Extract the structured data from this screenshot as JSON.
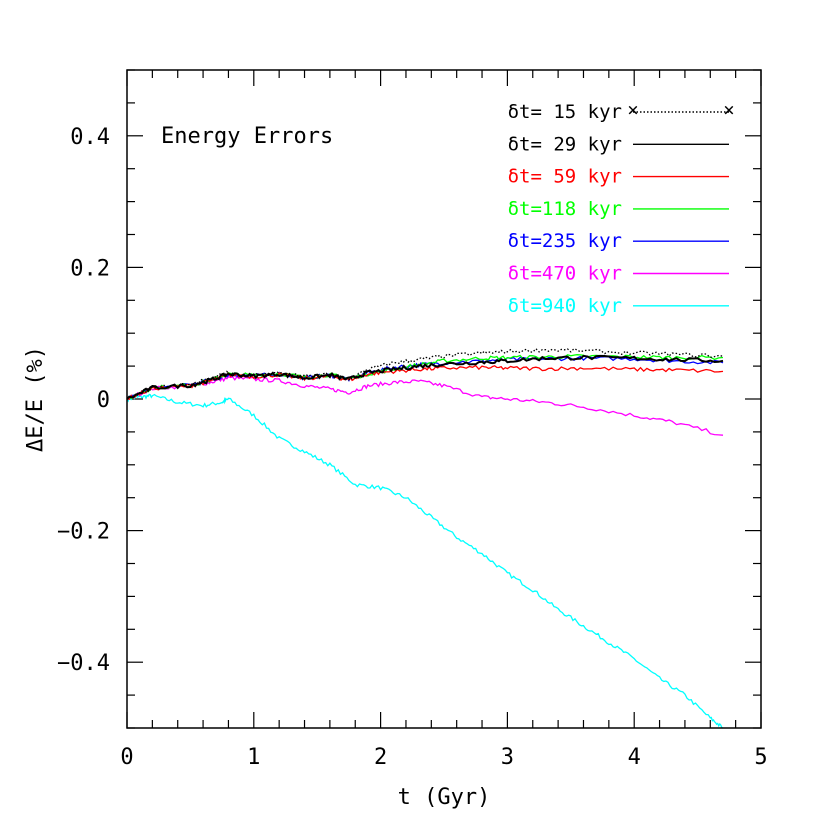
{
  "chart_data": {
    "type": "line",
    "annotation": "Energy Errors",
    "xlabel": "t (Gyr)",
    "ylabel": "ΔE/E (%)",
    "xlim": [
      0,
      5
    ],
    "ylim": [
      -0.5,
      0.5
    ],
    "x_ticks": [
      {
        "value": 0,
        "label": "0"
      },
      {
        "value": 1,
        "label": "1"
      },
      {
        "value": 2,
        "label": "2"
      },
      {
        "value": 3,
        "label": "3"
      },
      {
        "value": 4,
        "label": "4"
      },
      {
        "value": 5,
        "label": "5"
      }
    ],
    "y_ticks": [
      {
        "value": 0.4,
        "label": "0.4"
      },
      {
        "value": 0.2,
        "label": "0.2"
      },
      {
        "value": 0,
        "label": "0"
      },
      {
        "value": -0.2,
        "label": "−0.2"
      },
      {
        "value": -0.4,
        "label": "−0.4"
      }
    ],
    "legend_position": "top-right",
    "series": [
      {
        "name": "δt= 15 kyr",
        "color": "#000000",
        "style": "dotted",
        "x": [
          0,
          0.2,
          0.5,
          0.65,
          0.8,
          1.0,
          1.2,
          1.4,
          1.6,
          1.75,
          1.9,
          2.1,
          2.3,
          2.5,
          2.8,
          3.0,
          3.3,
          3.6,
          4.0,
          4.3,
          4.7
        ],
        "y": [
          0,
          0.018,
          0.022,
          0.03,
          0.04,
          0.036,
          0.04,
          0.034,
          0.038,
          0.03,
          0.045,
          0.055,
          0.06,
          0.065,
          0.07,
          0.072,
          0.075,
          0.073,
          0.07,
          0.068,
          0.065
        ]
      },
      {
        "name": "δt= 29 kyr",
        "color": "#000000",
        "style": "solid",
        "x": [
          0,
          0.2,
          0.5,
          0.65,
          0.8,
          1.0,
          1.2,
          1.4,
          1.6,
          1.75,
          1.9,
          2.1,
          2.3,
          2.5,
          2.8,
          3.0,
          3.3,
          3.6,
          4.0,
          4.3,
          4.7
        ],
        "y": [
          0,
          0.017,
          0.021,
          0.028,
          0.038,
          0.035,
          0.038,
          0.032,
          0.036,
          0.03,
          0.04,
          0.045,
          0.05,
          0.053,
          0.056,
          0.058,
          0.062,
          0.063,
          0.062,
          0.06,
          0.058
        ]
      },
      {
        "name": "δt= 59 kyr",
        "color": "#ff0000",
        "style": "solid",
        "x": [
          0,
          0.2,
          0.5,
          0.65,
          0.8,
          1.0,
          1.2,
          1.4,
          1.6,
          1.75,
          1.9,
          2.1,
          2.3,
          2.5,
          2.8,
          3.0,
          3.3,
          3.6,
          4.0,
          4.3,
          4.7
        ],
        "y": [
          0,
          0.016,
          0.02,
          0.027,
          0.037,
          0.034,
          0.037,
          0.031,
          0.035,
          0.029,
          0.038,
          0.042,
          0.045,
          0.047,
          0.048,
          0.047,
          0.046,
          0.047,
          0.045,
          0.044,
          0.042
        ]
      },
      {
        "name": "δt=118 kyr",
        "color": "#00ff00",
        "style": "solid",
        "x": [
          0,
          0.2,
          0.5,
          0.65,
          0.8,
          1.0,
          1.2,
          1.4,
          1.6,
          1.75,
          1.9,
          2.1,
          2.3,
          2.5,
          2.8,
          3.0,
          3.3,
          3.6,
          4.0,
          4.3,
          4.7
        ],
        "y": [
          0,
          0.017,
          0.021,
          0.028,
          0.038,
          0.036,
          0.039,
          0.033,
          0.037,
          0.031,
          0.038,
          0.045,
          0.052,
          0.058,
          0.062,
          0.063,
          0.064,
          0.065,
          0.064,
          0.063,
          0.063
        ]
      },
      {
        "name": "δt=235 kyr",
        "color": "#0000ff",
        "style": "solid",
        "x": [
          0,
          0.2,
          0.5,
          0.65,
          0.8,
          1.0,
          1.2,
          1.4,
          1.6,
          1.75,
          1.9,
          2.1,
          2.3,
          2.5,
          2.8,
          3.0,
          3.3,
          3.6,
          4.0,
          4.3,
          4.7
        ],
        "y": [
          0,
          0.017,
          0.021,
          0.028,
          0.037,
          0.035,
          0.038,
          0.032,
          0.036,
          0.03,
          0.04,
          0.048,
          0.052,
          0.055,
          0.058,
          0.06,
          0.061,
          0.062,
          0.061,
          0.058,
          0.055
        ]
      },
      {
        "name": "δt=470 kyr",
        "color": "#ff00ff",
        "style": "solid",
        "x": [
          0,
          0.2,
          0.5,
          0.65,
          0.8,
          1.0,
          1.2,
          1.4,
          1.6,
          1.75,
          1.9,
          2.1,
          2.3,
          2.5,
          2.8,
          3.0,
          3.3,
          3.6,
          4.0,
          4.3,
          4.7
        ],
        "y": [
          0,
          0.016,
          0.02,
          0.025,
          0.032,
          0.03,
          0.028,
          0.02,
          0.015,
          0.01,
          0.02,
          0.025,
          0.027,
          0.02,
          0.003,
          0.0,
          -0.005,
          -0.012,
          -0.025,
          -0.035,
          -0.055
        ]
      },
      {
        "name": "δt=940 kyr",
        "color": "#00ffff",
        "style": "solid",
        "x": [
          0,
          0.1,
          0.2,
          0.4,
          0.6,
          0.75,
          0.8,
          1.0,
          1.2,
          1.4,
          1.6,
          1.8,
          2.0,
          2.2,
          2.4,
          2.6,
          2.8,
          3.0,
          3.2,
          3.4,
          3.6,
          3.8,
          4.0,
          4.2,
          4.4,
          4.6,
          4.7
        ],
        "y": [
          0,
          0.003,
          0.005,
          -0.005,
          -0.01,
          -0.005,
          0.0,
          -0.025,
          -0.06,
          -0.08,
          -0.1,
          -0.13,
          -0.135,
          -0.15,
          -0.18,
          -0.21,
          -0.235,
          -0.265,
          -0.29,
          -0.32,
          -0.345,
          -0.37,
          -0.395,
          -0.425,
          -0.45,
          -0.485,
          -0.5
        ]
      }
    ]
  }
}
